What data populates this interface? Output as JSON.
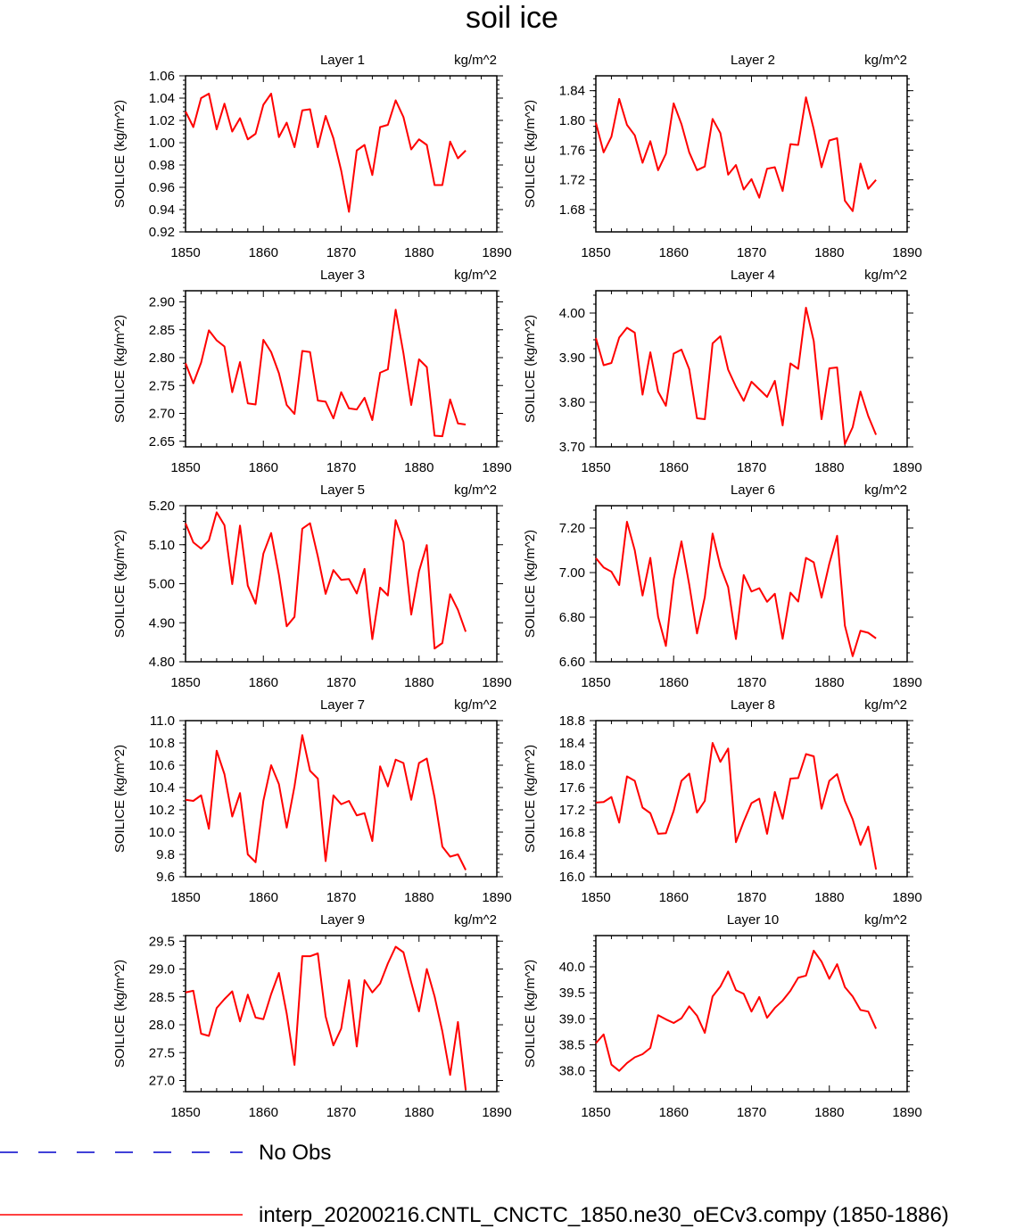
{
  "page_title": "soil ice",
  "colors": {
    "series": "#ff0000",
    "obs": "#0000cc",
    "axis": "#000000"
  },
  "legend": {
    "items": [
      {
        "label": "No Obs",
        "style": "dashed",
        "color": "#0000cc"
      },
      {
        "label": "interp_20200216.CNTL_CNCTC_1850.ne30_oECv3.compy (1850-1886)",
        "style": "solid",
        "color": "#ff0000"
      }
    ]
  },
  "chart_data": [
    {
      "type": "line",
      "title": "Layer 1",
      "units": "kg/m^2",
      "ylabel": "SOILICE  (kg/m^2)",
      "xlim": [
        1850,
        1890
      ],
      "ylim": [
        0.92,
        1.06
      ],
      "xticks": [
        "1850",
        "1860",
        "1870",
        "1880",
        "1890"
      ],
      "yticks": [
        "0.92",
        "0.94",
        "0.96",
        "0.98",
        "1.00",
        "1.02",
        "1.04",
        "1.06"
      ],
      "series": [
        {
          "x_start": 1850,
          "values": [
            1.028,
            1.014,
            1.04,
            1.044,
            1.012,
            1.035,
            1.01,
            1.022,
            1.003,
            1.008,
            1.034,
            1.044,
            1.005,
            1.018,
            0.996,
            1.029,
            1.03,
            0.996,
            1.024,
            1.004,
            0.975,
            0.938,
            0.993,
            0.998,
            0.971,
            1.014,
            1.016,
            1.038,
            1.023,
            0.994,
            1.003,
            0.998,
            0.962,
            0.962,
            1.001,
            0.986,
            0.993
          ]
        }
      ]
    },
    {
      "type": "line",
      "title": "Layer 2",
      "units": "kg/m^2",
      "ylabel": "SOILICE  (kg/m^2)",
      "xlim": [
        1850,
        1890
      ],
      "ylim": [
        1.65,
        1.86
      ],
      "xticks": [
        "1850",
        "1860",
        "1870",
        "1880",
        "1890"
      ],
      "yticks": [
        "1.68",
        "1.72",
        "1.76",
        "1.80",
        "1.84"
      ],
      "series": [
        {
          "x_start": 1850,
          "values": [
            1.797,
            1.757,
            1.778,
            1.829,
            1.794,
            1.78,
            1.743,
            1.772,
            1.733,
            1.755,
            1.823,
            1.795,
            1.757,
            1.733,
            1.738,
            1.802,
            1.783,
            1.727,
            1.74,
            1.707,
            1.721,
            1.696,
            1.735,
            1.737,
            1.705,
            1.768,
            1.767,
            1.831,
            1.788,
            1.737,
            1.773,
            1.776,
            1.692,
            1.678,
            1.742,
            1.708,
            1.72
          ]
        }
      ]
    },
    {
      "type": "line",
      "title": "Layer 3",
      "units": "kg/m^2",
      "ylabel": "SOILICE  (kg/m^2)",
      "xlim": [
        1850,
        1890
      ],
      "ylim": [
        2.64,
        2.92
      ],
      "xticks": [
        "1850",
        "1860",
        "1870",
        "1880",
        "1890"
      ],
      "yticks": [
        "2.65",
        "2.70",
        "2.75",
        "2.80",
        "2.85",
        "2.90"
      ],
      "series": [
        {
          "x_start": 1850,
          "values": [
            2.79,
            2.754,
            2.791,
            2.849,
            2.831,
            2.82,
            2.738,
            2.792,
            2.718,
            2.716,
            2.832,
            2.81,
            2.772,
            2.715,
            2.699,
            2.812,
            2.81,
            2.723,
            2.721,
            2.691,
            2.738,
            2.709,
            2.707,
            2.728,
            2.688,
            2.773,
            2.779,
            2.886,
            2.808,
            2.715,
            2.797,
            2.783,
            2.66,
            2.659,
            2.725,
            2.682,
            2.68
          ]
        }
      ]
    },
    {
      "type": "line",
      "title": "Layer 4",
      "units": "kg/m^2",
      "ylabel": "SOILICE  (kg/m^2)",
      "xlim": [
        1850,
        1890
      ],
      "ylim": [
        3.7,
        4.05
      ],
      "xticks": [
        "1850",
        "1860",
        "1870",
        "1880",
        "1890"
      ],
      "yticks": [
        "3.70",
        "3.80",
        "3.90",
        "4.00"
      ],
      "series": [
        {
          "x_start": 1850,
          "values": [
            3.944,
            3.883,
            3.888,
            3.945,
            3.967,
            3.956,
            3.817,
            3.912,
            3.824,
            3.792,
            3.909,
            3.918,
            3.874,
            3.764,
            3.762,
            3.932,
            3.948,
            3.873,
            3.835,
            3.803,
            3.846,
            3.829,
            3.812,
            3.848,
            3.748,
            3.887,
            3.875,
            4.012,
            3.937,
            3.762,
            3.876,
            3.878,
            3.706,
            3.744,
            3.824,
            3.769,
            3.727
          ]
        }
      ]
    },
    {
      "type": "line",
      "title": "Layer 5",
      "units": "kg/m^2",
      "ylabel": "SOILICE  (kg/m^2)",
      "xlim": [
        1850,
        1890
      ],
      "ylim": [
        4.8,
        5.2
      ],
      "xticks": [
        "1850",
        "1860",
        "1870",
        "1880",
        "1890"
      ],
      "yticks": [
        "4.80",
        "4.90",
        "5.00",
        "5.10",
        "5.20"
      ],
      "series": [
        {
          "x_start": 1850,
          "values": [
            5.155,
            5.106,
            5.09,
            5.111,
            5.183,
            5.15,
            4.999,
            5.149,
            4.995,
            4.949,
            5.077,
            5.13,
            5.023,
            4.891,
            4.915,
            5.141,
            5.155,
            5.07,
            4.974,
            5.035,
            5.01,
            5.012,
            4.975,
            5.038,
            4.858,
            4.99,
            4.97,
            5.163,
            5.107,
            4.921,
            5.032,
            5.099,
            4.834,
            4.848,
            4.973,
            4.933,
            4.877
          ]
        }
      ]
    },
    {
      "type": "line",
      "title": "Layer 6",
      "units": "kg/m^2",
      "ylabel": "SOILICE  (kg/m^2)",
      "xlim": [
        1850,
        1890
      ],
      "ylim": [
        6.6,
        7.3
      ],
      "xticks": [
        "1850",
        "1860",
        "1870",
        "1880",
        "1890"
      ],
      "yticks": [
        "6.60",
        "6.80",
        "7.00",
        "7.20"
      ],
      "series": [
        {
          "x_start": 1850,
          "values": [
            7.065,
            7.023,
            7.004,
            6.944,
            7.228,
            7.1,
            6.897,
            7.066,
            6.802,
            6.671,
            6.97,
            7.14,
            6.946,
            6.727,
            6.89,
            7.175,
            7.027,
            6.935,
            6.702,
            6.989,
            6.915,
            6.93,
            6.869,
            6.905,
            6.703,
            6.91,
            6.87,
            7.066,
            7.046,
            6.888,
            7.04,
            7.165,
            6.762,
            6.625,
            6.739,
            6.73,
            6.705
          ]
        }
      ]
    },
    {
      "type": "line",
      "title": "Layer 7",
      "units": "kg/m^2",
      "ylabel": "SOILICE  (kg/m^2)",
      "xlim": [
        1850,
        1890
      ],
      "ylim": [
        9.6,
        11.0
      ],
      "xticks": [
        "1850",
        "1860",
        "1870",
        "1880",
        "1890"
      ],
      "yticks": [
        "9.6",
        "9.8",
        "10.0",
        "10.2",
        "10.4",
        "10.6",
        "10.8",
        "11.0"
      ],
      "series": [
        {
          "x_start": 1850,
          "values": [
            10.29,
            10.28,
            10.33,
            10.03,
            10.73,
            10.52,
            10.14,
            10.35,
            9.8,
            9.73,
            10.28,
            10.6,
            10.43,
            10.04,
            10.41,
            10.87,
            10.55,
            10.48,
            9.74,
            10.33,
            10.25,
            10.28,
            10.15,
            10.17,
            9.92,
            10.59,
            10.41,
            10.65,
            10.62,
            10.29,
            10.62,
            10.66,
            10.31,
            9.87,
            9.78,
            9.8,
            9.66
          ]
        }
      ]
    },
    {
      "type": "line",
      "title": "Layer 8",
      "units": "kg/m^2",
      "ylabel": "SOILICE  (kg/m^2)",
      "xlim": [
        1850,
        1890
      ],
      "ylim": [
        16.0,
        18.8
      ],
      "xticks": [
        "1850",
        "1860",
        "1870",
        "1880",
        "1890"
      ],
      "yticks": [
        "16.0",
        "16.4",
        "16.8",
        "17.2",
        "17.6",
        "18.0",
        "18.4",
        "18.8"
      ],
      "series": [
        {
          "x_start": 1850,
          "values": [
            17.33,
            17.34,
            17.43,
            16.97,
            17.8,
            17.72,
            17.24,
            17.14,
            16.77,
            16.78,
            17.18,
            17.72,
            17.85,
            17.15,
            17.36,
            18.4,
            18.06,
            18.3,
            16.62,
            16.99,
            17.32,
            17.4,
            16.77,
            17.52,
            17.04,
            17.76,
            17.77,
            18.2,
            18.16,
            17.22,
            17.72,
            17.84,
            17.36,
            17.03,
            16.57,
            16.9,
            16.13
          ]
        }
      ]
    },
    {
      "type": "line",
      "title": "Layer 9",
      "units": "kg/m^2",
      "ylabel": "SOILICE  (kg/m^2)",
      "xlim": [
        1850,
        1890
      ],
      "ylim": [
        26.8,
        29.6
      ],
      "xticks": [
        "1850",
        "1860",
        "1870",
        "1880",
        "1890"
      ],
      "yticks": [
        "27.0",
        "27.5",
        "28.0",
        "28.5",
        "29.0",
        "29.5"
      ],
      "series": [
        {
          "x_start": 1850,
          "values": [
            28.58,
            28.61,
            27.84,
            27.8,
            28.3,
            28.46,
            28.6,
            28.06,
            28.54,
            28.13,
            28.1,
            28.55,
            28.93,
            28.2,
            27.28,
            29.23,
            29.23,
            29.28,
            28.15,
            27.63,
            27.93,
            28.8,
            27.61,
            28.8,
            28.58,
            28.74,
            29.1,
            29.4,
            29.3,
            28.76,
            28.24,
            29.0,
            28.51,
            27.88,
            27.1,
            28.05,
            26.83
          ]
        }
      ]
    },
    {
      "type": "line",
      "title": "Layer 10",
      "units": "kg/m^2",
      "ylabel": "SOILICE  (kg/m^2)",
      "xlim": [
        1850,
        1890
      ],
      "ylim": [
        37.6,
        40.6
      ],
      "xticks": [
        "1850",
        "1860",
        "1870",
        "1880",
        "1890"
      ],
      "yticks": [
        "38.0",
        "38.5",
        "39.0",
        "39.5",
        "40.0"
      ],
      "series": [
        {
          "x_start": 1850,
          "values": [
            38.53,
            38.7,
            38.12,
            38.0,
            38.15,
            38.26,
            38.32,
            38.44,
            39.07,
            38.99,
            38.92,
            39.01,
            39.24,
            39.06,
            38.73,
            39.43,
            39.62,
            39.91,
            39.55,
            39.48,
            39.14,
            39.42,
            39.02,
            39.21,
            39.35,
            39.54,
            39.79,
            39.83,
            40.31,
            40.1,
            39.77,
            40.05,
            39.61,
            39.43,
            39.17,
            39.14,
            38.81
          ]
        }
      ]
    }
  ]
}
